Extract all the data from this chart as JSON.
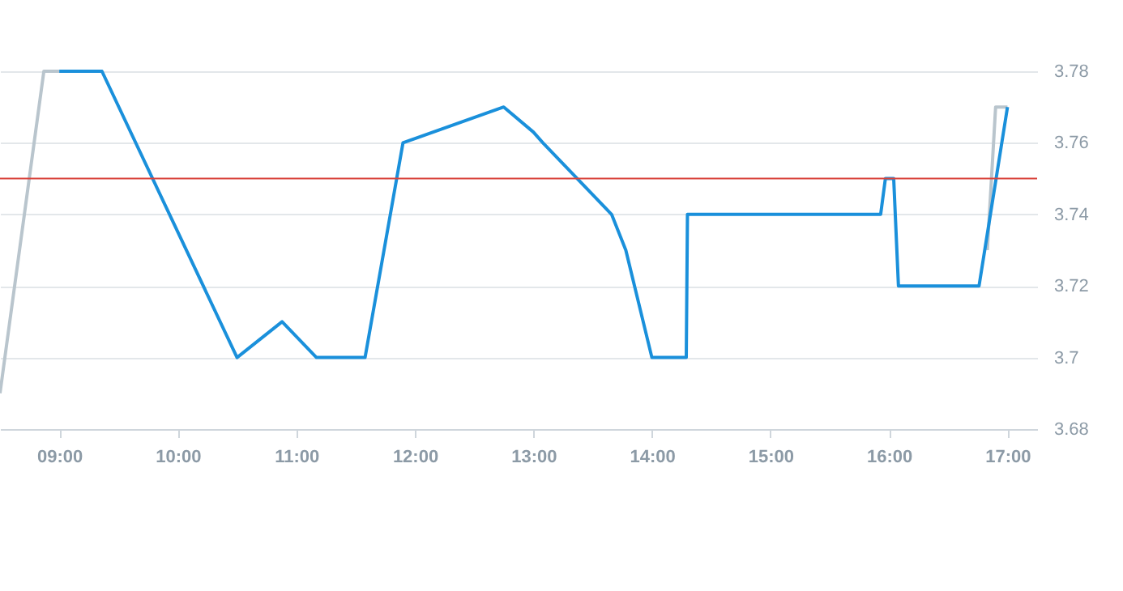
{
  "chart_data": {
    "type": "line",
    "xlim": [
      8.5,
      17.25
    ],
    "ylim": [
      3.68,
      3.78
    ],
    "xticks": [
      {
        "value": 9,
        "label": "09:00"
      },
      {
        "value": 10,
        "label": "10:00"
      },
      {
        "value": 11,
        "label": "11:00"
      },
      {
        "value": 12,
        "label": "12:00"
      },
      {
        "value": 13,
        "label": "13:00"
      },
      {
        "value": 14,
        "label": "14:00"
      },
      {
        "value": 15,
        "label": "15:00"
      },
      {
        "value": 16,
        "label": "16:00"
      },
      {
        "value": 17,
        "label": "17:00"
      }
    ],
    "yticks": [
      3.68,
      3.7,
      3.72,
      3.74,
      3.76,
      3.78
    ],
    "grid": "y",
    "marker": "none",
    "line_style": "solid",
    "ref_lines": [
      {
        "axis": "y",
        "value": 3.75,
        "color": "#d9433b"
      }
    ],
    "series": [
      {
        "color": "#b9c5cd",
        "x": [
          8.5,
          8.87,
          9.0,
          16.8,
          16.83,
          16.9,
          17.0
        ],
        "values": [
          3.69,
          3.78,
          3.78,
          null,
          3.73,
          3.77,
          3.77
        ]
      },
      {
        "color": "#1a90db",
        "x": [
          9.0,
          9.36,
          10.5,
          10.88,
          11.17,
          11.58,
          11.9,
          12.75,
          13.0,
          13.08,
          13.66,
          13.78,
          14.0,
          14.29,
          14.3,
          15.93,
          15.97,
          16.04,
          16.08,
          16.76,
          17.0
        ],
        "values": [
          3.78,
          3.78,
          3.7,
          3.71,
          3.7,
          3.7,
          3.76,
          3.77,
          3.763,
          3.76,
          3.74,
          3.73,
          3.7,
          3.7,
          3.74,
          3.74,
          3.75,
          3.75,
          3.72,
          3.72,
          3.77
        ]
      }
    ]
  }
}
